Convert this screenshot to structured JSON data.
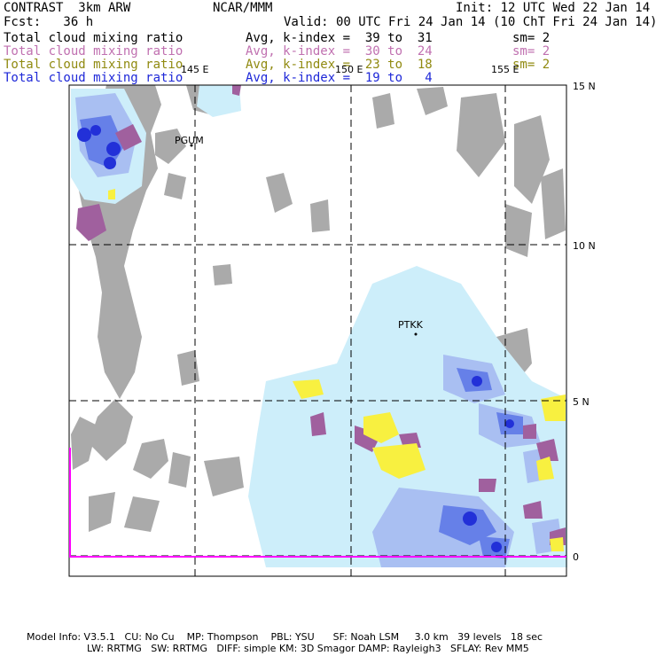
{
  "header": {
    "left1": "CONTRAST  3km ARW",
    "center1": "NCAR/MMM",
    "right1": "Init: 12 UTC Wed 22 Jan 14",
    "left2": "Fcst:   36 h",
    "right2": "Valid: 00 UTC Fri 24 Jan 14 (10 ChT Fri 24 Jan 14)"
  },
  "fields": [
    {
      "name": "Total cloud mixing ratio",
      "range": "Avg, k-index =  39 to  31",
      "sm": "sm= 2",
      "color": "#000000"
    },
    {
      "name": "Total cloud mixing ratio",
      "range": "Avg, k-index =  30 to  24",
      "sm": "sm= 2",
      "color": "#c070b0"
    },
    {
      "name": "Total cloud mixing ratio",
      "range": "Avg, k-index =  23 to  18",
      "sm": "sm= 2",
      "color": "#908a10"
    },
    {
      "name": "Total cloud mixing ratio",
      "range": "Avg, k-index =  19 to   4",
      "sm": "",
      "color": "#1e28d8"
    }
  ],
  "map": {
    "lon_labels": [
      "145 E",
      "150 E",
      "155 E"
    ],
    "lat_labels": [
      "15 N",
      "10 N",
      "5 N",
      "0"
    ],
    "stations": [
      "PGUM",
      "PTKK"
    ],
    "colors": {
      "gray": "#aaaaaa",
      "light_blue": "#cdeefa",
      "mid_blue": "#a9bff2",
      "blue": "#6680e8",
      "dark_blue": "#2230d8",
      "purple": "#a0609e",
      "yellow": "#f8f040",
      "magenta": "#ff00ff"
    }
  },
  "footer": {
    "line1": "Model Info: V3.5.1   CU: No Cu    MP: Thompson    PBL: YSU      SF: Noah LSM     3.0 km   39 levels   18 sec",
    "line2": "LW: RRTMG   SW: RRTMG   DIFF: simple KM: 3D Smagor DAMP: Rayleigh3   SFLAY: Rev MM5"
  }
}
